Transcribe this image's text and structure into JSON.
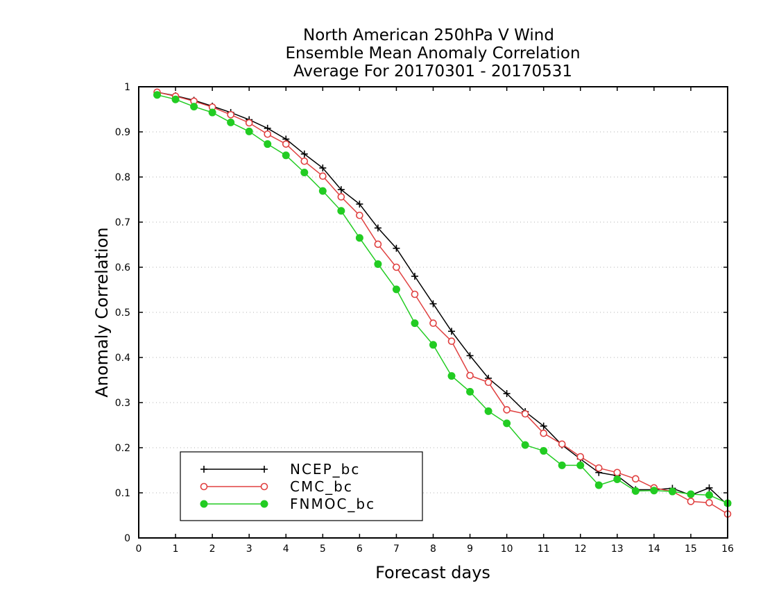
{
  "chart_data": {
    "type": "line",
    "title": [
      "North American 250hPa V Wind",
      "Ensemble Mean Anomaly Correlation",
      "Average For 20170301 - 20170531"
    ],
    "xlabel": "Forecast days",
    "ylabel": "Anomaly Correlation",
    "xlim": [
      0,
      16
    ],
    "ylim": [
      0,
      1
    ],
    "xticks": [
      0,
      1,
      2,
      3,
      4,
      5,
      6,
      7,
      8,
      9,
      10,
      11,
      12,
      13,
      14,
      15,
      16
    ],
    "yticks": [
      0,
      0.1,
      0.2,
      0.3,
      0.4,
      0.5,
      0.6,
      0.7,
      0.8,
      0.9,
      1
    ],
    "ytick_labels": [
      "0",
      "0.1",
      "0.2",
      "0.3",
      "0.4",
      "0.5",
      "0.6",
      "0.7",
      "0.8",
      "0.9",
      "1"
    ],
    "grid": "horizontal dotted",
    "legend_position": "bottom-left",
    "x": [
      0.5,
      1,
      1.5,
      2,
      2.5,
      3,
      3.5,
      4,
      4.5,
      5,
      5.5,
      6,
      6.5,
      7,
      7.5,
      8,
      8.5,
      9,
      9.5,
      10,
      10.5,
      11,
      11.5,
      12,
      12.5,
      13,
      13.5,
      14,
      14.5,
      15,
      15.5,
      16
    ],
    "series": [
      {
        "name": "NCEP_bc",
        "color": "#000000",
        "marker": "plus",
        "values": [
          0.988,
          0.98,
          0.97,
          0.957,
          0.943,
          0.927,
          0.908,
          0.884,
          0.851,
          0.82,
          0.772,
          0.74,
          0.687,
          0.642,
          0.58,
          0.519,
          0.458,
          0.404,
          0.354,
          0.32,
          0.28,
          0.248,
          0.206,
          0.175,
          0.145,
          0.138,
          0.107,
          0.107,
          0.11,
          0.095,
          0.111,
          0.073
        ]
      },
      {
        "name": "CMC_bc",
        "color": "#e04040",
        "marker": "open-circle",
        "values": [
          0.988,
          0.979,
          0.968,
          0.955,
          0.938,
          0.92,
          0.895,
          0.873,
          0.835,
          0.802,
          0.756,
          0.715,
          0.651,
          0.6,
          0.54,
          0.476,
          0.436,
          0.36,
          0.345,
          0.284,
          0.275,
          0.232,
          0.208,
          0.18,
          0.155,
          0.145,
          0.131,
          0.111,
          0.103,
          0.081,
          0.078,
          0.053
        ]
      },
      {
        "name": "FNMOC_bc",
        "color": "#22cc22",
        "marker": "filled-circle",
        "values": [
          0.982,
          0.972,
          0.956,
          0.943,
          0.921,
          0.901,
          0.873,
          0.848,
          0.81,
          0.769,
          0.725,
          0.665,
          0.607,
          0.551,
          0.476,
          0.428,
          0.359,
          0.324,
          0.281,
          0.254,
          0.206,
          0.193,
          0.161,
          0.161,
          0.117,
          0.13,
          0.104,
          0.105,
          0.103,
          0.097,
          0.095,
          0.077
        ]
      }
    ]
  }
}
